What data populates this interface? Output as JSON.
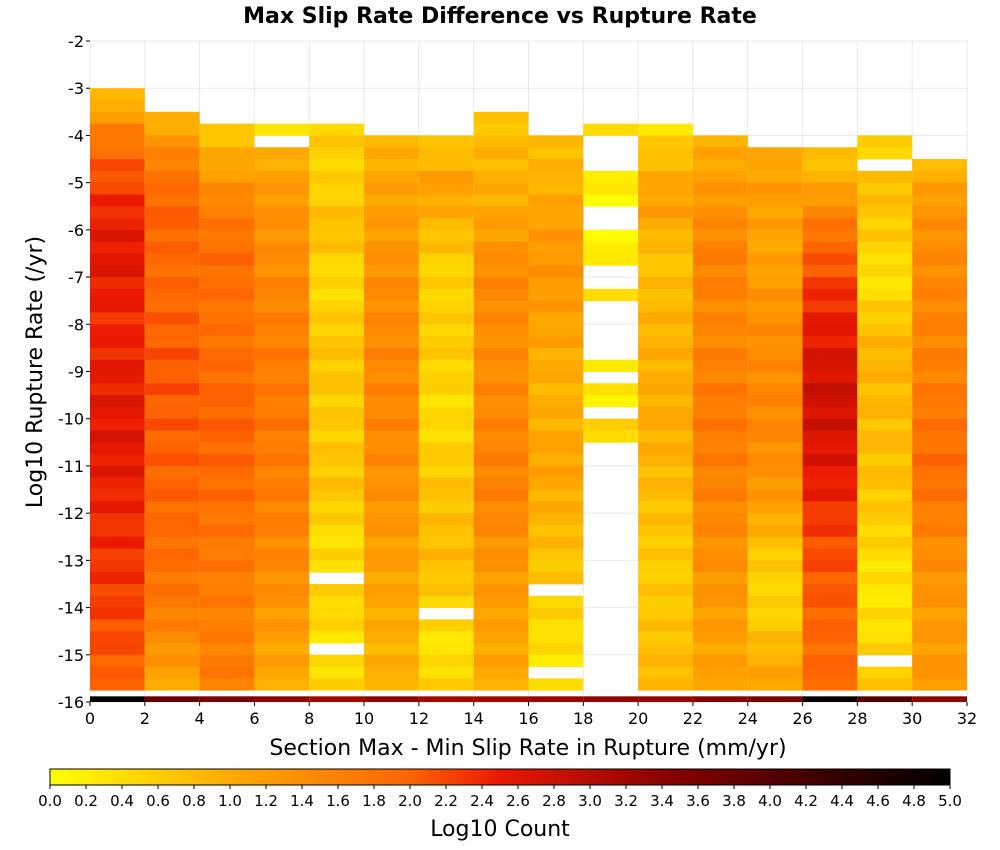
{
  "chart_data": {
    "type": "heatmap",
    "title": "Max Slip Rate Difference vs Rupture Rate",
    "xlabel": "Section Max - Min Slip Rate in Rupture (mm/yr)",
    "ylabel": "Log10 Rupture Rate (/yr)",
    "xlim": [
      0,
      32
    ],
    "ylim": [
      -16,
      -2
    ],
    "x_ticks": [
      "0",
      "2",
      "4",
      "6",
      "8",
      "10",
      "12",
      "14",
      "16",
      "18",
      "20",
      "22",
      "24",
      "26",
      "28",
      "30",
      "32"
    ],
    "y_ticks": [
      "-2",
      "-3",
      "-4",
      "-5",
      "-6",
      "-7",
      "-8",
      "-9",
      "-10",
      "-11",
      "-12",
      "-13",
      "-14",
      "-15",
      "-16"
    ],
    "x_bin_width": 2,
    "y_bin_width": 0.25,
    "colorbar": {
      "label": "Log10 Count",
      "range": [
        0,
        5
      ],
      "ticks": [
        "0.0",
        "0.2",
        "0.4",
        "0.6",
        "0.8",
        "1.0",
        "1.2",
        "1.4",
        "1.6",
        "1.8",
        "2.0",
        "2.2",
        "2.4",
        "2.6",
        "2.8",
        "3.0",
        "3.2",
        "3.4",
        "3.6",
        "3.8",
        "4.0",
        "4.2",
        "4.4",
        "4.6",
        "4.8",
        "5.0"
      ]
    },
    "columns": [
      {
        "x": 1,
        "top": -3.0,
        "profile": [
          [
            -3.0,
            0.6
          ],
          [
            -3.4,
            1.0
          ],
          [
            -3.8,
            1.5
          ],
          [
            -4.5,
            2.0
          ],
          [
            -5.5,
            2.4
          ],
          [
            -6.5,
            2.6
          ],
          [
            -8.0,
            2.4
          ],
          [
            -9.0,
            2.5
          ],
          [
            -10.5,
            2.6
          ],
          [
            -12.0,
            2.4
          ],
          [
            -13.5,
            2.3
          ],
          [
            -15.0,
            2.1
          ],
          [
            -15.8,
            1.9
          ]
        ],
        "floor": 5.0,
        "gaps": []
      },
      {
        "x": 3,
        "top": -3.5,
        "profile": [
          [
            -3.5,
            0.7
          ],
          [
            -4.0,
            1.2
          ],
          [
            -4.5,
            1.6
          ],
          [
            -5.5,
            2.0
          ],
          [
            -7.0,
            1.9
          ],
          [
            -9.0,
            2.1
          ],
          [
            -11.0,
            2.0
          ],
          [
            -12.5,
            1.9
          ],
          [
            -14.0,
            1.7
          ],
          [
            -15.0,
            1.3
          ],
          [
            -15.8,
            1.0
          ]
        ],
        "floor": 3.8,
        "gaps": []
      },
      {
        "x": 5,
        "top": -3.75,
        "profile": [
          [
            -3.75,
            0.6
          ],
          [
            -4.5,
            1.0
          ],
          [
            -5.5,
            1.6
          ],
          [
            -6.5,
            1.9
          ],
          [
            -8.0,
            1.8
          ],
          [
            -10.0,
            2.0
          ],
          [
            -11.5,
            1.9
          ],
          [
            -13.0,
            1.7
          ],
          [
            -14.5,
            1.6
          ],
          [
            -15.8,
            1.7
          ]
        ],
        "floor": 3.6,
        "gaps": []
      },
      {
        "x": 7,
        "top": -3.75,
        "profile": [
          [
            -3.75,
            0.3
          ],
          [
            -4.5,
            1.0
          ],
          [
            -5.5,
            1.3
          ],
          [
            -6.5,
            1.4
          ],
          [
            -8.0,
            1.6
          ],
          [
            -10.0,
            1.7
          ],
          [
            -12.0,
            1.6
          ],
          [
            -13.5,
            1.4
          ],
          [
            -15.0,
            1.1
          ],
          [
            -15.8,
            1.0
          ]
        ],
        "floor": 3.4,
        "gaps": [
          [
            -4.0,
            -4.25
          ]
        ]
      },
      {
        "x": 9,
        "top": -3.75,
        "profile": [
          [
            -3.75,
            0.6
          ],
          [
            -5.0,
            0.5
          ],
          [
            -6.0,
            0.8
          ],
          [
            -7.0,
            0.4
          ],
          [
            -8.5,
            0.7
          ],
          [
            -10.0,
            0.6
          ],
          [
            -11.5,
            0.7
          ],
          [
            -12.5,
            0.4
          ],
          [
            -14.0,
            0.5
          ],
          [
            -15.0,
            0.3
          ],
          [
            -15.8,
            0.6
          ]
        ],
        "floor": 3.2,
        "gaps": [
          [
            -13.25,
            -13.5
          ],
          [
            -14.75,
            -15.0
          ]
        ]
      },
      {
        "x": 11,
        "top": -4.0,
        "profile": [
          [
            -4.0,
            0.8
          ],
          [
            -5.0,
            1.1
          ],
          [
            -6.0,
            1.2
          ],
          [
            -7.0,
            1.4
          ],
          [
            -8.5,
            1.5
          ],
          [
            -10.0,
            1.5
          ],
          [
            -12.0,
            1.3
          ],
          [
            -13.5,
            1.1
          ],
          [
            -15.0,
            0.9
          ],
          [
            -15.8,
            1.0
          ]
        ],
        "floor": 3.4,
        "gaps": []
      },
      {
        "x": 13,
        "top": -4.0,
        "profile": [
          [
            -4.0,
            0.5
          ],
          [
            -5.0,
            1.2
          ],
          [
            -6.0,
            0.8
          ],
          [
            -7.0,
            0.5
          ],
          [
            -8.5,
            0.6
          ],
          [
            -10.0,
            0.4
          ],
          [
            -11.5,
            0.7
          ],
          [
            -13.0,
            0.8
          ],
          [
            -14.0,
            0.5
          ],
          [
            -15.0,
            0.3
          ],
          [
            -15.6,
            0.6
          ]
        ],
        "floor": 3.2,
        "gaps": [
          [
            -14.0,
            -14.25
          ],
          [
            -15.75,
            -16.0
          ]
        ]
      },
      {
        "x": 15,
        "top": -3.5,
        "profile": [
          [
            -3.5,
            0.5
          ],
          [
            -4.0,
            0.8
          ],
          [
            -5.5,
            1.0
          ],
          [
            -7.0,
            1.5
          ],
          [
            -8.5,
            1.4
          ],
          [
            -10.0,
            1.5
          ],
          [
            -11.5,
            1.6
          ],
          [
            -13.0,
            1.3
          ],
          [
            -14.5,
            1.1
          ],
          [
            -15.8,
            1.0
          ]
        ],
        "floor": 3.2,
        "gaps": []
      },
      {
        "x": 17,
        "top": -4.0,
        "profile": [
          [
            -4.0,
            0.8
          ],
          [
            -5.0,
            0.9
          ],
          [
            -6.0,
            1.2
          ],
          [
            -7.0,
            1.3
          ],
          [
            -8.0,
            1.1
          ],
          [
            -9.5,
            0.9
          ],
          [
            -11.0,
            1.1
          ],
          [
            -12.5,
            0.8
          ],
          [
            -13.5,
            0.6
          ],
          [
            -14.5,
            0.4
          ],
          [
            -15.5,
            0.3
          ]
        ],
        "floor": 3.3,
        "gaps": [
          [
            -13.5,
            -13.75
          ],
          [
            -15.25,
            -15.5
          ]
        ]
      },
      {
        "x": 19,
        "top": -3.75,
        "profile": [
          [
            -3.75,
            0.6
          ],
          [
            -4.8,
            0.2
          ],
          [
            -6.5,
            0.15
          ],
          [
            -7.5,
            0.4
          ],
          [
            -8.8,
            0.3
          ],
          [
            -9.8,
            0.15
          ],
          [
            -10.2,
            0.5
          ]
        ],
        "floor": 3.4,
        "gaps": [
          [
            -4.0,
            -4.75
          ],
          [
            -5.5,
            -6.0
          ],
          [
            -6.75,
            -7.25
          ],
          [
            -7.5,
            -8.75
          ],
          [
            -9.0,
            -9.25
          ],
          [
            -9.75,
            -9.9
          ],
          [
            -10.4,
            -15.8
          ]
        ]
      },
      {
        "x": 21,
        "top": -3.75,
        "profile": [
          [
            -3.75,
            0.3
          ],
          [
            -4.5,
            0.8
          ],
          [
            -5.5,
            1.2
          ],
          [
            -6.5,
            0.7
          ],
          [
            -8.0,
            0.9
          ],
          [
            -10.0,
            1.0
          ],
          [
            -11.5,
            0.8
          ],
          [
            -13.0,
            0.6
          ],
          [
            -14.5,
            0.7
          ],
          [
            -15.8,
            0.9
          ]
        ],
        "floor": 3.3,
        "gaps": []
      },
      {
        "x": 23,
        "top": -4.0,
        "profile": [
          [
            -4.0,
            0.9
          ],
          [
            -5.0,
            1.2
          ],
          [
            -6.5,
            1.6
          ],
          [
            -8.0,
            1.5
          ],
          [
            -10.0,
            1.7
          ],
          [
            -12.0,
            1.5
          ],
          [
            -13.5,
            1.3
          ],
          [
            -15.0,
            1.1
          ],
          [
            -15.8,
            1.2
          ]
        ],
        "floor": 3.5,
        "gaps": []
      },
      {
        "x": 25,
        "top": -4.25,
        "profile": [
          [
            -4.25,
            0.9
          ],
          [
            -5.0,
            1.2
          ],
          [
            -6.5,
            1.1
          ],
          [
            -8.0,
            1.4
          ],
          [
            -10.0,
            1.5
          ],
          [
            -11.5,
            1.3
          ],
          [
            -13.0,
            0.6
          ],
          [
            -14.0,
            0.5
          ],
          [
            -15.0,
            0.9
          ],
          [
            -15.8,
            1.2
          ]
        ],
        "floor": 3.6,
        "gaps": []
      },
      {
        "x": 27,
        "top": -4.25,
        "profile": [
          [
            -4.25,
            0.6
          ],
          [
            -5.0,
            1.0
          ],
          [
            -6.0,
            1.8
          ],
          [
            -7.5,
            2.4
          ],
          [
            -9.5,
            2.8
          ],
          [
            -11.0,
            2.6
          ],
          [
            -12.5,
            2.2
          ],
          [
            -14.0,
            2.0
          ],
          [
            -15.0,
            1.9
          ],
          [
            -15.8,
            2.0
          ]
        ],
        "floor": 4.9,
        "gaps": []
      },
      {
        "x": 29,
        "top": -4.0,
        "profile": [
          [
            -4.0,
            0.5
          ],
          [
            -5.0,
            0.8
          ],
          [
            -6.5,
            0.5
          ],
          [
            -7.0,
            0.3
          ],
          [
            -8.5,
            0.9
          ],
          [
            -10.0,
            0.8
          ],
          [
            -11.5,
            0.7
          ],
          [
            -12.5,
            0.5
          ],
          [
            -13.5,
            0.3
          ],
          [
            -14.5,
            0.4
          ],
          [
            -15.5,
            0.6
          ]
        ],
        "floor": 4.0,
        "gaps": [
          [
            -4.5,
            -4.75
          ],
          [
            -15.0,
            -15.25
          ]
        ]
      },
      {
        "x": 31,
        "top": -4.5,
        "profile": [
          [
            -4.5,
            0.8
          ],
          [
            -5.5,
            1.3
          ],
          [
            -7.0,
            1.5
          ],
          [
            -9.0,
            1.6
          ],
          [
            -11.0,
            1.9
          ],
          [
            -13.0,
            1.4
          ],
          [
            -14.5,
            1.2
          ],
          [
            -15.8,
            1.3
          ]
        ],
        "floor": 3.4,
        "gaps": []
      }
    ]
  }
}
